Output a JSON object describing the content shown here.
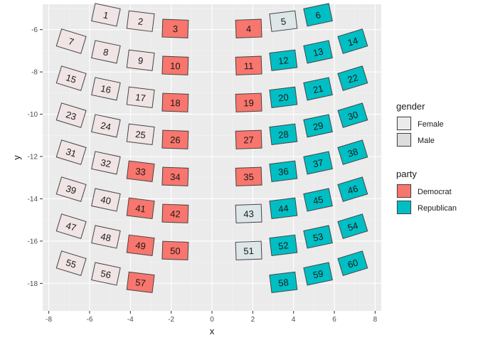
{
  "chart_data": {
    "type": "scatter",
    "title": "",
    "xlabel": "x",
    "ylabel": "y",
    "xlim": [
      -8.3,
      8.3
    ],
    "ylim": [
      -19.3,
      -4.8
    ],
    "x_ticks": [
      -8,
      -6,
      -4,
      -2,
      0,
      2,
      4,
      6,
      8
    ],
    "x_tick_labels": [
      "-8",
      "-6",
      "-4",
      "-2",
      "0",
      "2",
      "4",
      "6",
      "8"
    ],
    "y_ticks": [
      -18,
      -16,
      -14,
      -12,
      -10,
      -8,
      -6
    ],
    "y_tick_labels": [
      "-18",
      "-16",
      "-14",
      "-12",
      "-10",
      "-8",
      "-6"
    ],
    "grid": true,
    "legend_position": "right",
    "colors": {
      "democrat": "#F8766D",
      "republican": "#00BFC4",
      "female_alpha_fill": "#f0e4e4",
      "male_alpha_fill": "#e4e4e4",
      "panel_bg": "#EBEBEB",
      "grid_major": "#ffffff"
    },
    "legends": [
      {
        "title": "gender",
        "entries": [
          {
            "label": "Female",
            "fill": "#EBEBEB"
          },
          {
            "label": "Male",
            "fill": "#DDDDDD"
          }
        ]
      },
      {
        "title": "party",
        "entries": [
          {
            "label": "Democrat",
            "fill": "#F8766D"
          },
          {
            "label": "Republican",
            "fill": "#00BFC4"
          }
        ]
      }
    ],
    "points": [
      {
        "label": "1",
        "x": -5.2,
        "y": -5.3,
        "angle": 12,
        "party": "none",
        "gender": "Female"
      },
      {
        "label": "2",
        "x": -3.5,
        "y": -5.6,
        "angle": 7,
        "party": "none",
        "gender": "Female"
      },
      {
        "label": "3",
        "x": -1.8,
        "y": -5.95,
        "angle": 2,
        "party": "Democrat",
        "gender": "Male"
      },
      {
        "label": "4",
        "x": 1.8,
        "y": -5.95,
        "angle": -2,
        "party": "Democrat",
        "gender": "Male"
      },
      {
        "label": "5",
        "x": 3.5,
        "y": -5.6,
        "angle": -7,
        "party": "none",
        "gender": "Male"
      },
      {
        "label": "6",
        "x": 5.2,
        "y": -5.3,
        "angle": -12,
        "party": "Republican",
        "gender": "Male"
      },
      {
        "label": "7",
        "x": -6.9,
        "y": -6.55,
        "angle": 17,
        "party": "none",
        "gender": "Female"
      },
      {
        "label": "8",
        "x": -5.2,
        "y": -7.05,
        "angle": 12,
        "party": "none",
        "gender": "Female"
      },
      {
        "label": "9",
        "x": -3.5,
        "y": -7.45,
        "angle": 7,
        "party": "none",
        "gender": "Female"
      },
      {
        "label": "10",
        "x": -1.8,
        "y": -7.7,
        "angle": 2,
        "party": "Democrat",
        "gender": "Male"
      },
      {
        "label": "11",
        "x": 1.8,
        "y": -7.7,
        "angle": -2,
        "party": "Democrat",
        "gender": "Male"
      },
      {
        "label": "12",
        "x": 3.5,
        "y": -7.45,
        "angle": -7,
        "party": "Republican",
        "gender": "Male"
      },
      {
        "label": "13",
        "x": 5.2,
        "y": -7.05,
        "angle": -12,
        "party": "Republican",
        "gender": "Male"
      },
      {
        "label": "14",
        "x": 6.9,
        "y": -6.55,
        "angle": -17,
        "party": "Republican",
        "gender": "Male"
      },
      {
        "label": "15",
        "x": -6.9,
        "y": -8.3,
        "angle": 17,
        "party": "none",
        "gender": "Female"
      },
      {
        "label": "16",
        "x": -5.2,
        "y": -8.8,
        "angle": 12,
        "party": "none",
        "gender": "Female"
      },
      {
        "label": "17",
        "x": -3.5,
        "y": -9.2,
        "angle": 7,
        "party": "none",
        "gender": "Female"
      },
      {
        "label": "18",
        "x": -1.8,
        "y": -9.45,
        "angle": 2,
        "party": "Democrat",
        "gender": "Male"
      },
      {
        "label": "19",
        "x": 1.8,
        "y": -9.45,
        "angle": -2,
        "party": "Democrat",
        "gender": "Male"
      },
      {
        "label": "20",
        "x": 3.5,
        "y": -9.2,
        "angle": -7,
        "party": "Republican",
        "gender": "Male"
      },
      {
        "label": "21",
        "x": 5.2,
        "y": -8.8,
        "angle": -12,
        "party": "Republican",
        "gender": "Male"
      },
      {
        "label": "22",
        "x": 6.9,
        "y": -8.3,
        "angle": -17,
        "party": "Republican",
        "gender": "Male"
      },
      {
        "label": "23",
        "x": -6.9,
        "y": -10.05,
        "angle": 17,
        "party": "none",
        "gender": "Female"
      },
      {
        "label": "24",
        "x": -5.2,
        "y": -10.55,
        "angle": 12,
        "party": "none",
        "gender": "Female"
      },
      {
        "label": "25",
        "x": -3.5,
        "y": -10.95,
        "angle": 7,
        "party": "none",
        "gender": "Female"
      },
      {
        "label": "26",
        "x": -1.8,
        "y": -11.2,
        "angle": 2,
        "party": "Democrat",
        "gender": "Male"
      },
      {
        "label": "27",
        "x": 1.8,
        "y": -11.2,
        "angle": -2,
        "party": "Democrat",
        "gender": "Male"
      },
      {
        "label": "28",
        "x": 3.5,
        "y": -10.95,
        "angle": -7,
        "party": "Republican",
        "gender": "Male"
      },
      {
        "label": "29",
        "x": 5.2,
        "y": -10.55,
        "angle": -12,
        "party": "Republican",
        "gender": "Male"
      },
      {
        "label": "30",
        "x": 6.9,
        "y": -10.05,
        "angle": -17,
        "party": "Republican",
        "gender": "Male"
      },
      {
        "label": "31",
        "x": -6.9,
        "y": -11.8,
        "angle": 17,
        "party": "none",
        "gender": "Female"
      },
      {
        "label": "32",
        "x": -5.2,
        "y": -12.3,
        "angle": 12,
        "party": "none",
        "gender": "Female"
      },
      {
        "label": "33",
        "x": -3.5,
        "y": -12.7,
        "angle": 7,
        "party": "Democrat",
        "gender": "Male"
      },
      {
        "label": "34",
        "x": -1.8,
        "y": -12.95,
        "angle": 2,
        "party": "Democrat",
        "gender": "Male"
      },
      {
        "label": "35",
        "x": 1.8,
        "y": -12.95,
        "angle": -2,
        "party": "Democrat",
        "gender": "Male"
      },
      {
        "label": "36",
        "x": 3.5,
        "y": -12.7,
        "angle": -7,
        "party": "Republican",
        "gender": "Male"
      },
      {
        "label": "37",
        "x": 5.2,
        "y": -12.3,
        "angle": -12,
        "party": "Republican",
        "gender": "Male"
      },
      {
        "label": "38",
        "x": 6.9,
        "y": -11.8,
        "angle": -17,
        "party": "Republican",
        "gender": "Male"
      },
      {
        "label": "39",
        "x": -6.9,
        "y": -13.55,
        "angle": 17,
        "party": "none",
        "gender": "Female"
      },
      {
        "label": "40",
        "x": -5.2,
        "y": -14.05,
        "angle": 12,
        "party": "none",
        "gender": "Female"
      },
      {
        "label": "41",
        "x": -3.5,
        "y": -14.45,
        "angle": 7,
        "party": "Democrat",
        "gender": "Male"
      },
      {
        "label": "42",
        "x": -1.8,
        "y": -14.7,
        "angle": 2,
        "party": "Democrat",
        "gender": "Male"
      },
      {
        "label": "43",
        "x": 1.8,
        "y": -14.7,
        "angle": -2,
        "party": "none",
        "gender": "Male"
      },
      {
        "label": "44",
        "x": 3.5,
        "y": -14.45,
        "angle": -7,
        "party": "Republican",
        "gender": "Male"
      },
      {
        "label": "45",
        "x": 5.2,
        "y": -14.05,
        "angle": -12,
        "party": "Republican",
        "gender": "Male"
      },
      {
        "label": "46",
        "x": 6.9,
        "y": -13.55,
        "angle": -17,
        "party": "Republican",
        "gender": "Male"
      },
      {
        "label": "47",
        "x": -6.9,
        "y": -15.3,
        "angle": 17,
        "party": "none",
        "gender": "Female"
      },
      {
        "label": "48",
        "x": -5.2,
        "y": -15.8,
        "angle": 12,
        "party": "none",
        "gender": "Female"
      },
      {
        "label": "49",
        "x": -3.5,
        "y": -16.2,
        "angle": 7,
        "party": "Democrat",
        "gender": "Male"
      },
      {
        "label": "50",
        "x": -1.8,
        "y": -16.45,
        "angle": 2,
        "party": "Democrat",
        "gender": "Male"
      },
      {
        "label": "51",
        "x": 1.8,
        "y": -16.45,
        "angle": -2,
        "party": "none",
        "gender": "Male"
      },
      {
        "label": "52",
        "x": 3.5,
        "y": -16.2,
        "angle": -7,
        "party": "Republican",
        "gender": "Male"
      },
      {
        "label": "53",
        "x": 5.2,
        "y": -15.8,
        "angle": -12,
        "party": "Republican",
        "gender": "Male"
      },
      {
        "label": "54",
        "x": 6.9,
        "y": -15.3,
        "angle": -17,
        "party": "Republican",
        "gender": "Male"
      },
      {
        "label": "55",
        "x": -6.9,
        "y": -17.05,
        "angle": 17,
        "party": "none",
        "gender": "Female"
      },
      {
        "label": "56",
        "x": -5.2,
        "y": -17.55,
        "angle": 12,
        "party": "none",
        "gender": "Female"
      },
      {
        "label": "57",
        "x": -3.5,
        "y": -17.95,
        "angle": 7,
        "party": "Democrat",
        "gender": "Male"
      },
      {
        "label": "58",
        "x": 3.5,
        "y": -17.95,
        "angle": -7,
        "party": "Republican",
        "gender": "Male"
      },
      {
        "label": "59",
        "x": 5.2,
        "y": -17.55,
        "angle": -12,
        "party": "Republican",
        "gender": "Male"
      },
      {
        "label": "60",
        "x": 6.9,
        "y": -17.05,
        "angle": -17,
        "party": "Republican",
        "gender": "Male"
      }
    ]
  }
}
